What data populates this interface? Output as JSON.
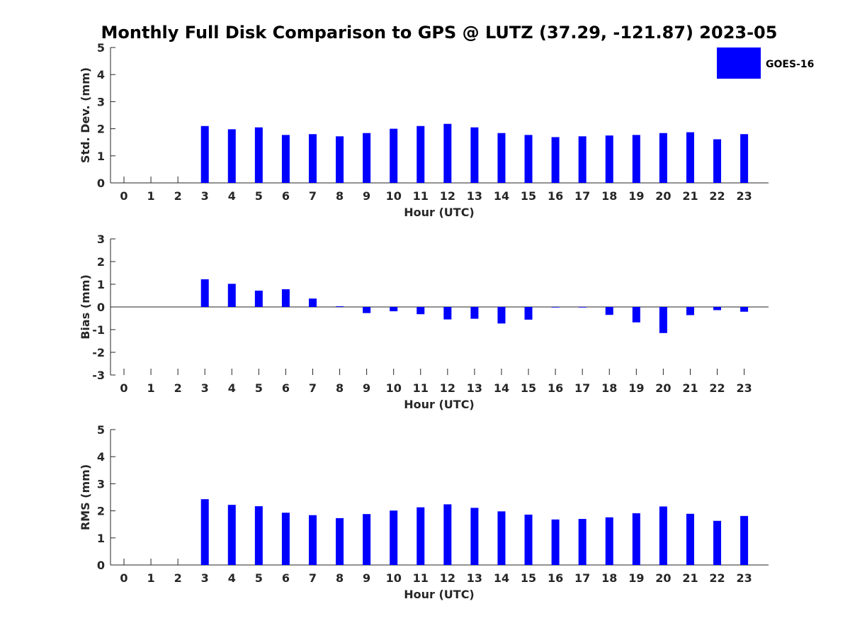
{
  "chart_data": {
    "title": "Monthly Full Disk Comparison to GPS @ LUTZ (37.29, -121.87) 2023-05",
    "series_name": "GOES-16",
    "bar_color": "#0000ff",
    "hours": [
      0,
      1,
      2,
      3,
      4,
      5,
      6,
      7,
      8,
      9,
      10,
      11,
      12,
      13,
      14,
      15,
      16,
      17,
      18,
      19,
      20,
      21,
      22,
      23
    ],
    "panels": [
      {
        "type": "bar",
        "ylabel": "Std. Dev. (mm)",
        "xlabel": "Hour (UTC)",
        "ylim": [
          0,
          5
        ],
        "yticks": [
          0,
          1,
          2,
          3,
          4,
          5
        ],
        "values": [
          null,
          null,
          null,
          2.1,
          1.98,
          2.05,
          1.77,
          1.8,
          1.72,
          1.84,
          2.0,
          2.1,
          2.18,
          2.05,
          1.84,
          1.77,
          1.69,
          1.72,
          1.75,
          1.77,
          1.84,
          1.87,
          1.61,
          1.8
        ]
      },
      {
        "type": "bar",
        "ylabel": "Bias (mm)",
        "xlabel": "Hour (UTC)",
        "ylim": [
          -3,
          3
        ],
        "yticks": [
          -3,
          -2,
          -1,
          0,
          1,
          2,
          3
        ],
        "values": [
          null,
          null,
          null,
          1.22,
          1.02,
          0.72,
          0.78,
          0.37,
          0.03,
          -0.27,
          -0.19,
          -0.32,
          -0.55,
          -0.52,
          -0.73,
          -0.56,
          -0.02,
          -0.02,
          -0.35,
          -0.68,
          -1.15,
          -0.36,
          -0.14,
          -0.21
        ]
      },
      {
        "type": "bar",
        "ylabel": "RMS (mm)",
        "xlabel": "Hour (UTC)",
        "ylim": [
          0,
          5
        ],
        "yticks": [
          0,
          1,
          2,
          3,
          4,
          5
        ],
        "values": [
          null,
          null,
          null,
          2.43,
          2.22,
          2.17,
          1.93,
          1.84,
          1.73,
          1.88,
          2.01,
          2.13,
          2.24,
          2.11,
          1.98,
          1.86,
          1.68,
          1.7,
          1.76,
          1.91,
          2.16,
          1.89,
          1.63,
          1.81
        ]
      }
    ]
  }
}
